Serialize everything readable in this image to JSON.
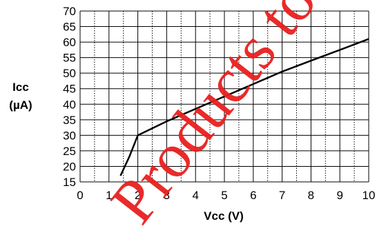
{
  "chart_data": {
    "type": "line",
    "xlabel": "Vcc (V)",
    "ylabel_line1": "Icc",
    "ylabel_line2": "(µA)",
    "xlim": [
      0,
      10
    ],
    "ylim": [
      15,
      70
    ],
    "x_ticks": [
      0,
      1,
      2,
      3,
      4,
      5,
      6,
      7,
      8,
      9,
      10
    ],
    "y_ticks": [
      15,
      20,
      25,
      30,
      35,
      40,
      45,
      50,
      55,
      60,
      65,
      70
    ],
    "grid": true,
    "grid_minor_vertical": true,
    "series": [
      {
        "x": [
          1.4,
          1.7,
          2.0,
          3.0,
          4.0,
          5.0,
          6.0,
          7.0,
          8.0,
          9.0,
          10.0
        ],
        "y": [
          17,
          23,
          30,
          34.5,
          38.5,
          42.5,
          46.5,
          50.5,
          54,
          57.5,
          61
        ]
      }
    ],
    "line_color": "#000000"
  },
  "watermark": {
    "text": "Products to h",
    "color": "#e8201f"
  }
}
